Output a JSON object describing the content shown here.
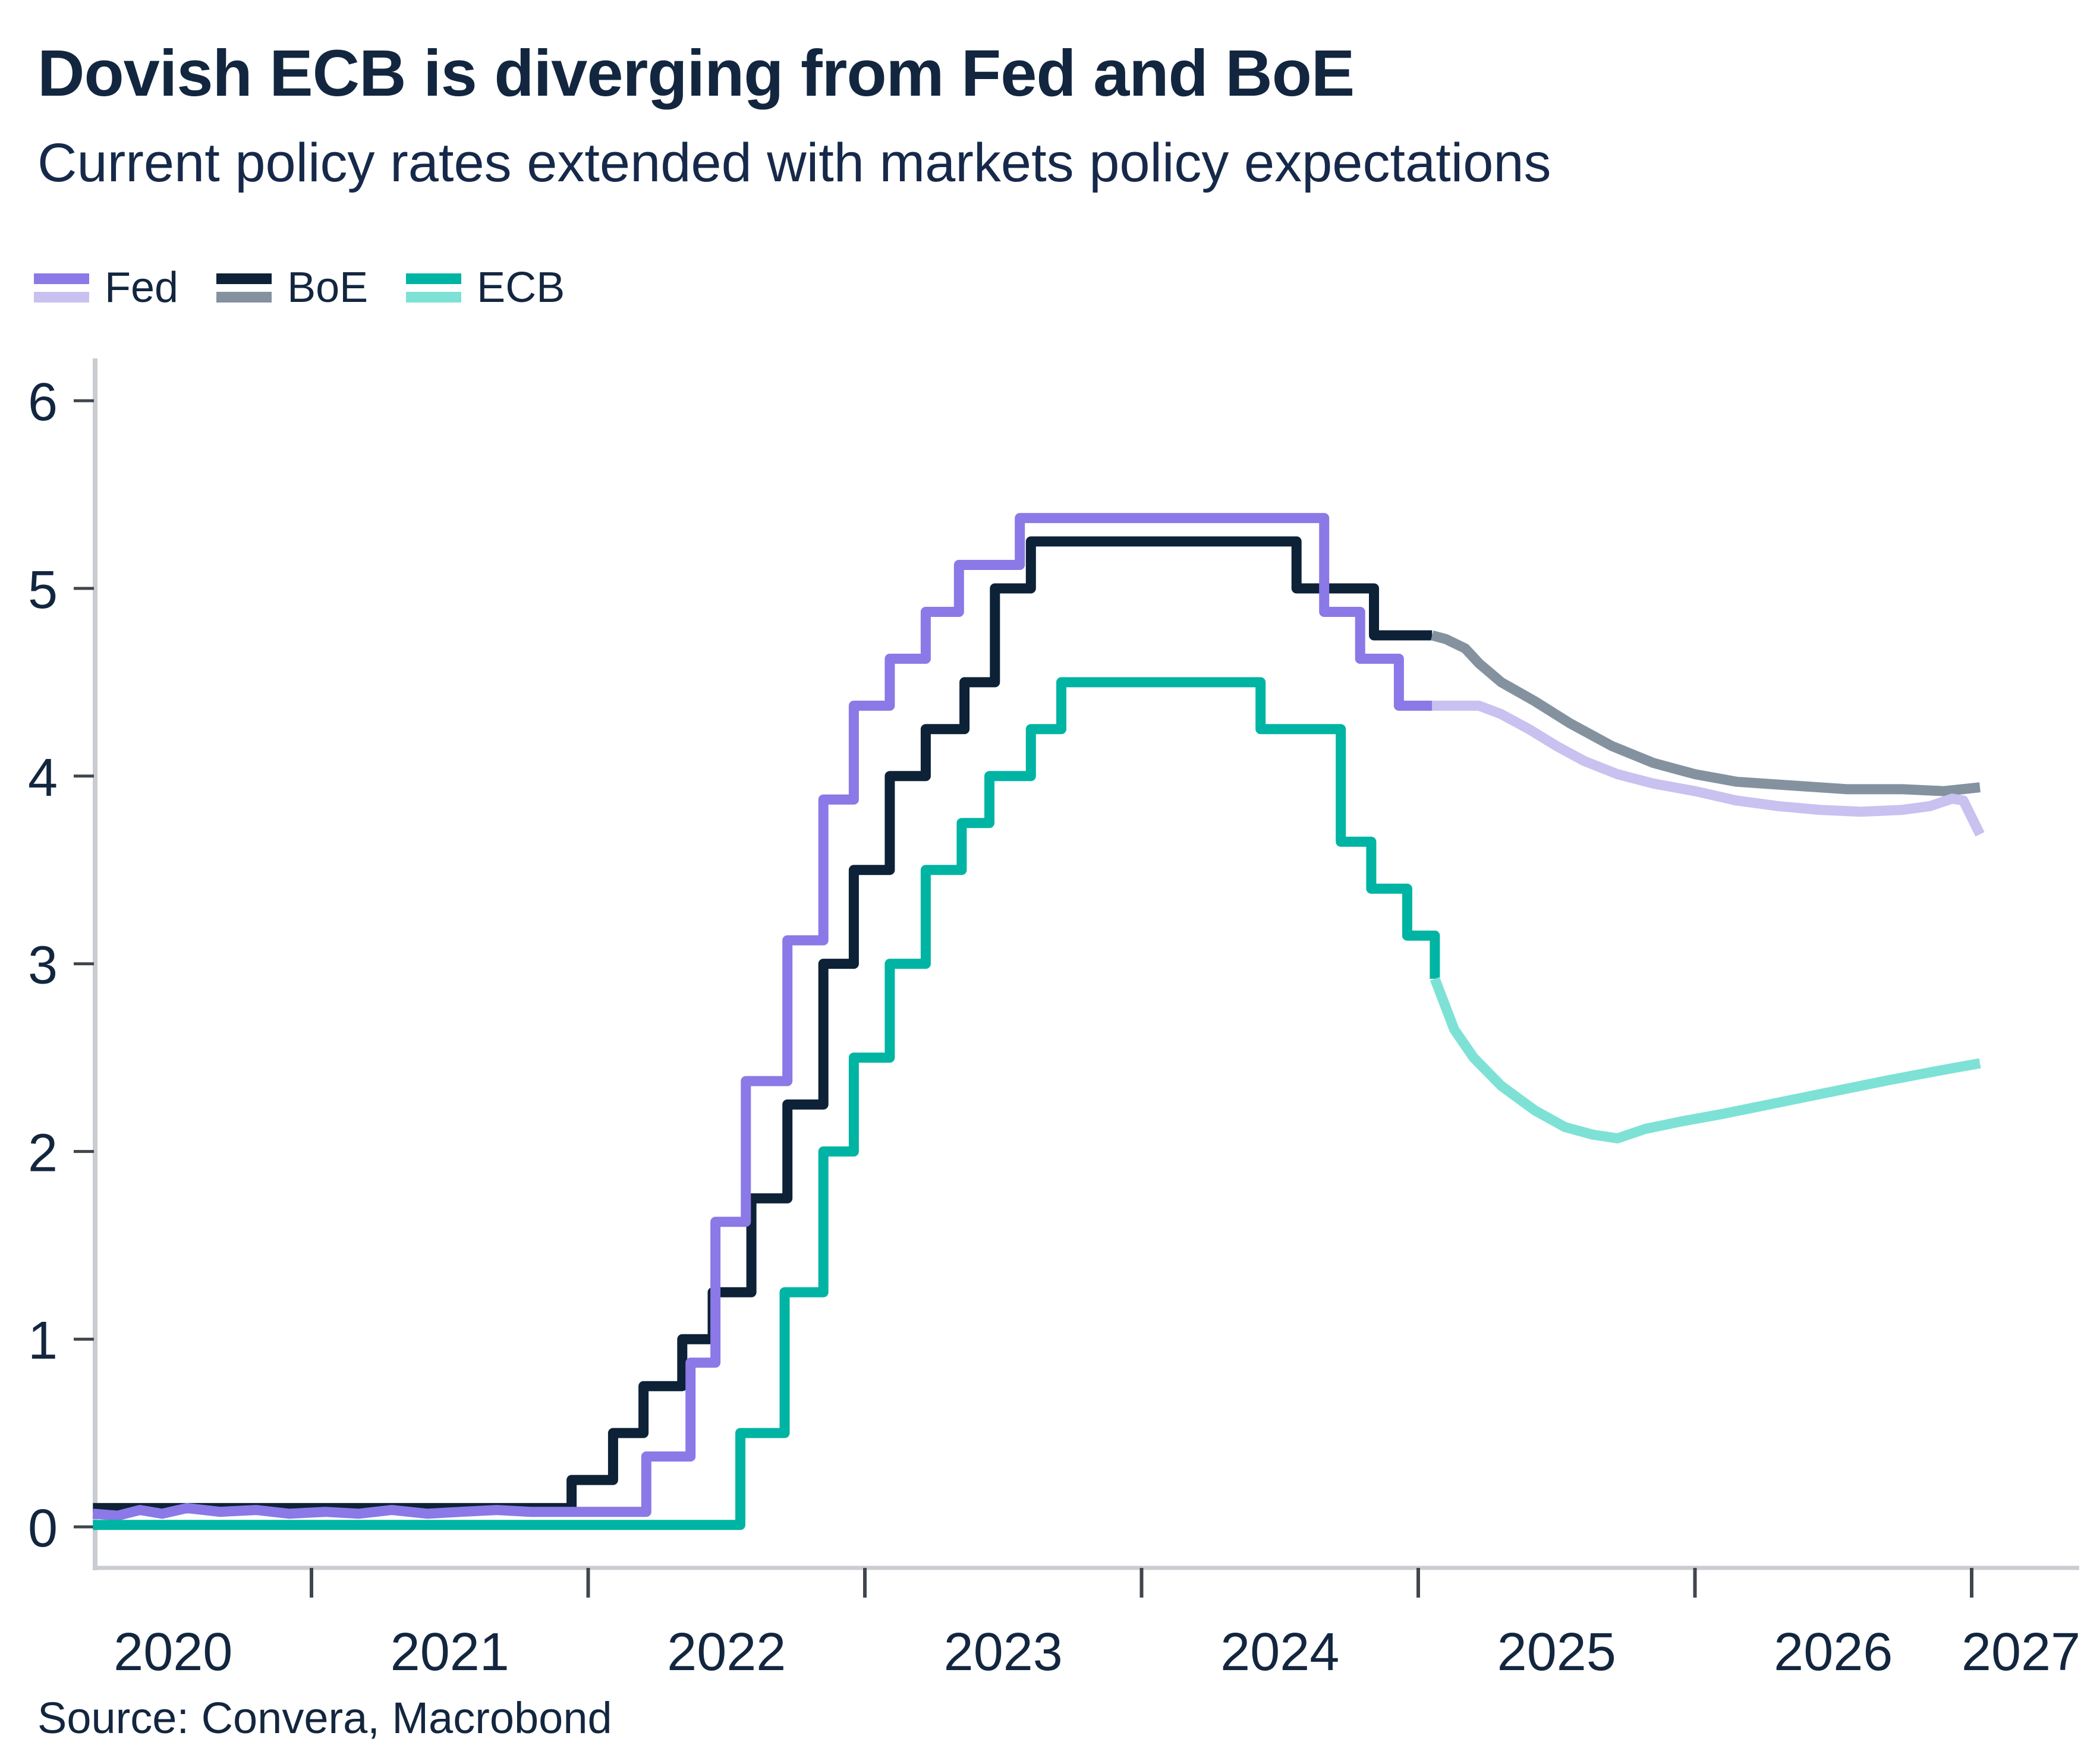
{
  "header": {
    "title": "Dovish ECB is diverging from Fed and BoE",
    "subtitle": "Current policy rates extended with markets policy expectations"
  },
  "legend": [
    {
      "label": "Fed",
      "color_solid": "#8a79e6",
      "color_expected": "#c9c1f0"
    },
    {
      "label": "BoE",
      "color_solid": "#0d2137",
      "color_expected": "#8492a0"
    },
    {
      "label": "ECB",
      "color_solid": "#00b4a4",
      "color_expected": "#7de2d5"
    }
  ],
  "source": {
    "text": "Source: Convera, Macrobond"
  },
  "colors": {
    "text_navy": "#13263f",
    "axis_line": "#c9ccd1",
    "tick_mark": "#41464d",
    "background": "#ffffff"
  },
  "chart_data": {
    "type": "line",
    "title": "Dovish ECB is diverging from Fed and BoE",
    "subtitle": "Current policy rates extended with markets policy expectations",
    "xlabel": "",
    "ylabel": "",
    "ylim": [
      0,
      6
    ],
    "xlim": [
      2020.2,
      2027.4
    ],
    "grid": false,
    "legend_position": "top-left",
    "y_ticks": [
      0,
      1,
      2,
      3,
      4,
      5,
      6
    ],
    "x_ticks": [
      2021,
      2022,
      2023,
      2024,
      2025,
      2026,
      2027
    ],
    "x_tick_labels": [
      "2020",
      "2021",
      "2022",
      "2023",
      "2024",
      "2025",
      "2026",
      "2027"
    ],
    "series": [
      {
        "id": "boe-actual",
        "name": "BoE (current policy rate)",
        "color": "#0d2137",
        "style": "solid",
        "points": [
          [
            2020.21,
            0.1
          ],
          [
            2021.94,
            0.1
          ],
          [
            2021.94,
            0.25
          ],
          [
            2022.09,
            0.25
          ],
          [
            2022.09,
            0.5
          ],
          [
            2022.2,
            0.5
          ],
          [
            2022.2,
            0.75
          ],
          [
            2022.34,
            0.75
          ],
          [
            2022.34,
            1.0
          ],
          [
            2022.45,
            1.0
          ],
          [
            2022.45,
            1.25
          ],
          [
            2022.59,
            1.25
          ],
          [
            2022.59,
            1.75
          ],
          [
            2022.72,
            1.75
          ],
          [
            2022.72,
            2.25
          ],
          [
            2022.85,
            2.25
          ],
          [
            2022.85,
            3.0
          ],
          [
            2022.96,
            3.0
          ],
          [
            2022.96,
            3.5
          ],
          [
            2023.09,
            3.5
          ],
          [
            2023.09,
            4.0
          ],
          [
            2023.22,
            4.0
          ],
          [
            2023.22,
            4.25
          ],
          [
            2023.36,
            4.25
          ],
          [
            2023.36,
            4.5
          ],
          [
            2023.47,
            4.5
          ],
          [
            2023.47,
            5.0
          ],
          [
            2023.6,
            5.0
          ],
          [
            2023.6,
            5.25
          ],
          [
            2024.56,
            5.25
          ],
          [
            2024.56,
            5.0
          ],
          [
            2024.84,
            5.0
          ],
          [
            2024.84,
            4.75
          ],
          [
            2025.05,
            4.75
          ]
        ]
      },
      {
        "id": "boe-expected",
        "name": "BoE (market expectations)",
        "color": "#8492a0",
        "style": "expected",
        "points": [
          [
            2025.05,
            4.75
          ],
          [
            2025.1,
            4.73
          ],
          [
            2025.17,
            4.68
          ],
          [
            2025.22,
            4.6
          ],
          [
            2025.3,
            4.5
          ],
          [
            2025.42,
            4.4
          ],
          [
            2025.55,
            4.28
          ],
          [
            2025.7,
            4.16
          ],
          [
            2025.85,
            4.07
          ],
          [
            2026.0,
            4.01
          ],
          [
            2026.15,
            3.97
          ],
          [
            2026.35,
            3.95
          ],
          [
            2026.55,
            3.93
          ],
          [
            2026.75,
            3.93
          ],
          [
            2026.9,
            3.92
          ],
          [
            2027.03,
            3.94
          ]
        ]
      },
      {
        "id": "fed-actual",
        "name": "Fed (current policy rate)",
        "color": "#8a79e6",
        "style": "solid",
        "points": [
          [
            2020.21,
            0.07
          ],
          [
            2020.3,
            0.06
          ],
          [
            2020.38,
            0.09
          ],
          [
            2020.46,
            0.07
          ],
          [
            2020.55,
            0.1
          ],
          [
            2020.67,
            0.08
          ],
          [
            2020.8,
            0.09
          ],
          [
            2020.92,
            0.07
          ],
          [
            2021.05,
            0.08
          ],
          [
            2021.17,
            0.07
          ],
          [
            2021.29,
            0.09
          ],
          [
            2021.42,
            0.07
          ],
          [
            2021.54,
            0.08
          ],
          [
            2021.67,
            0.09
          ],
          [
            2021.79,
            0.08
          ],
          [
            2021.92,
            0.08
          ],
          [
            2022.04,
            0.08
          ],
          [
            2022.13,
            0.08
          ],
          [
            2022.21,
            0.08
          ],
          [
            2022.21,
            0.375
          ],
          [
            2022.37,
            0.375
          ],
          [
            2022.37,
            0.875
          ],
          [
            2022.46,
            0.875
          ],
          [
            2022.46,
            1.625
          ],
          [
            2022.57,
            1.625
          ],
          [
            2022.57,
            2.375
          ],
          [
            2022.72,
            2.375
          ],
          [
            2022.72,
            3.125
          ],
          [
            2022.85,
            3.125
          ],
          [
            2022.85,
            3.875
          ],
          [
            2022.96,
            3.875
          ],
          [
            2022.96,
            4.375
          ],
          [
            2023.09,
            4.375
          ],
          [
            2023.09,
            4.625
          ],
          [
            2023.22,
            4.625
          ],
          [
            2023.22,
            4.875
          ],
          [
            2023.34,
            4.875
          ],
          [
            2023.34,
            5.125
          ],
          [
            2023.56,
            5.125
          ],
          [
            2023.56,
            5.375
          ],
          [
            2024.66,
            5.375
          ],
          [
            2024.66,
            4.875
          ],
          [
            2024.79,
            4.875
          ],
          [
            2024.79,
            4.625
          ],
          [
            2024.93,
            4.625
          ],
          [
            2024.93,
            4.375
          ],
          [
            2025.05,
            4.375
          ]
        ]
      },
      {
        "id": "fed-expected",
        "name": "Fed (market expectations)",
        "color": "#c9c1f0",
        "style": "expected",
        "points": [
          [
            2025.05,
            4.375
          ],
          [
            2025.22,
            4.375
          ],
          [
            2025.3,
            4.33
          ],
          [
            2025.4,
            4.25
          ],
          [
            2025.5,
            4.16
          ],
          [
            2025.6,
            4.08
          ],
          [
            2025.72,
            4.01
          ],
          [
            2025.85,
            3.96
          ],
          [
            2026.0,
            3.92
          ],
          [
            2026.15,
            3.87
          ],
          [
            2026.3,
            3.84
          ],
          [
            2026.45,
            3.82
          ],
          [
            2026.6,
            3.81
          ],
          [
            2026.75,
            3.82
          ],
          [
            2026.85,
            3.84
          ],
          [
            2026.93,
            3.88
          ],
          [
            2026.97,
            3.87
          ],
          [
            2027.03,
            3.69
          ]
        ]
      },
      {
        "id": "ecb-actual",
        "name": "ECB (current policy rate)",
        "color": "#00b4a4",
        "style": "solid",
        "points": [
          [
            2020.21,
            0.01
          ],
          [
            2022.55,
            0.01
          ],
          [
            2022.55,
            0.5
          ],
          [
            2022.71,
            0.5
          ],
          [
            2022.71,
            1.25
          ],
          [
            2022.85,
            1.25
          ],
          [
            2022.85,
            2.0
          ],
          [
            2022.96,
            2.0
          ],
          [
            2022.96,
            2.5
          ],
          [
            2023.09,
            2.5
          ],
          [
            2023.09,
            3.0
          ],
          [
            2023.22,
            3.0
          ],
          [
            2023.22,
            3.5
          ],
          [
            2023.35,
            3.5
          ],
          [
            2023.35,
            3.75
          ],
          [
            2023.45,
            3.75
          ],
          [
            2023.45,
            4.0
          ],
          [
            2023.6,
            4.0
          ],
          [
            2023.6,
            4.25
          ],
          [
            2023.71,
            4.25
          ],
          [
            2023.71,
            4.5
          ],
          [
            2024.43,
            4.5
          ],
          [
            2024.43,
            4.25
          ],
          [
            2024.72,
            4.25
          ],
          [
            2024.72,
            3.65
          ],
          [
            2024.83,
            3.65
          ],
          [
            2024.83,
            3.4
          ],
          [
            2024.96,
            3.4
          ],
          [
            2024.96,
            3.15
          ],
          [
            2025.06,
            3.15
          ],
          [
            2025.06,
            2.92
          ]
        ]
      },
      {
        "id": "ecb-expected",
        "name": "ECB (market expectations)",
        "color": "#7de2d5",
        "style": "expected",
        "points": [
          [
            2025.06,
            2.92
          ],
          [
            2025.13,
            2.65
          ],
          [
            2025.2,
            2.5
          ],
          [
            2025.3,
            2.35
          ],
          [
            2025.42,
            2.22
          ],
          [
            2025.53,
            2.13
          ],
          [
            2025.63,
            2.09
          ],
          [
            2025.72,
            2.07
          ],
          [
            2025.82,
            2.12
          ],
          [
            2025.95,
            2.16
          ],
          [
            2026.1,
            2.2
          ],
          [
            2026.3,
            2.26
          ],
          [
            2026.5,
            2.32
          ],
          [
            2026.7,
            2.38
          ],
          [
            2026.88,
            2.43
          ],
          [
            2027.03,
            2.47
          ]
        ]
      }
    ]
  }
}
